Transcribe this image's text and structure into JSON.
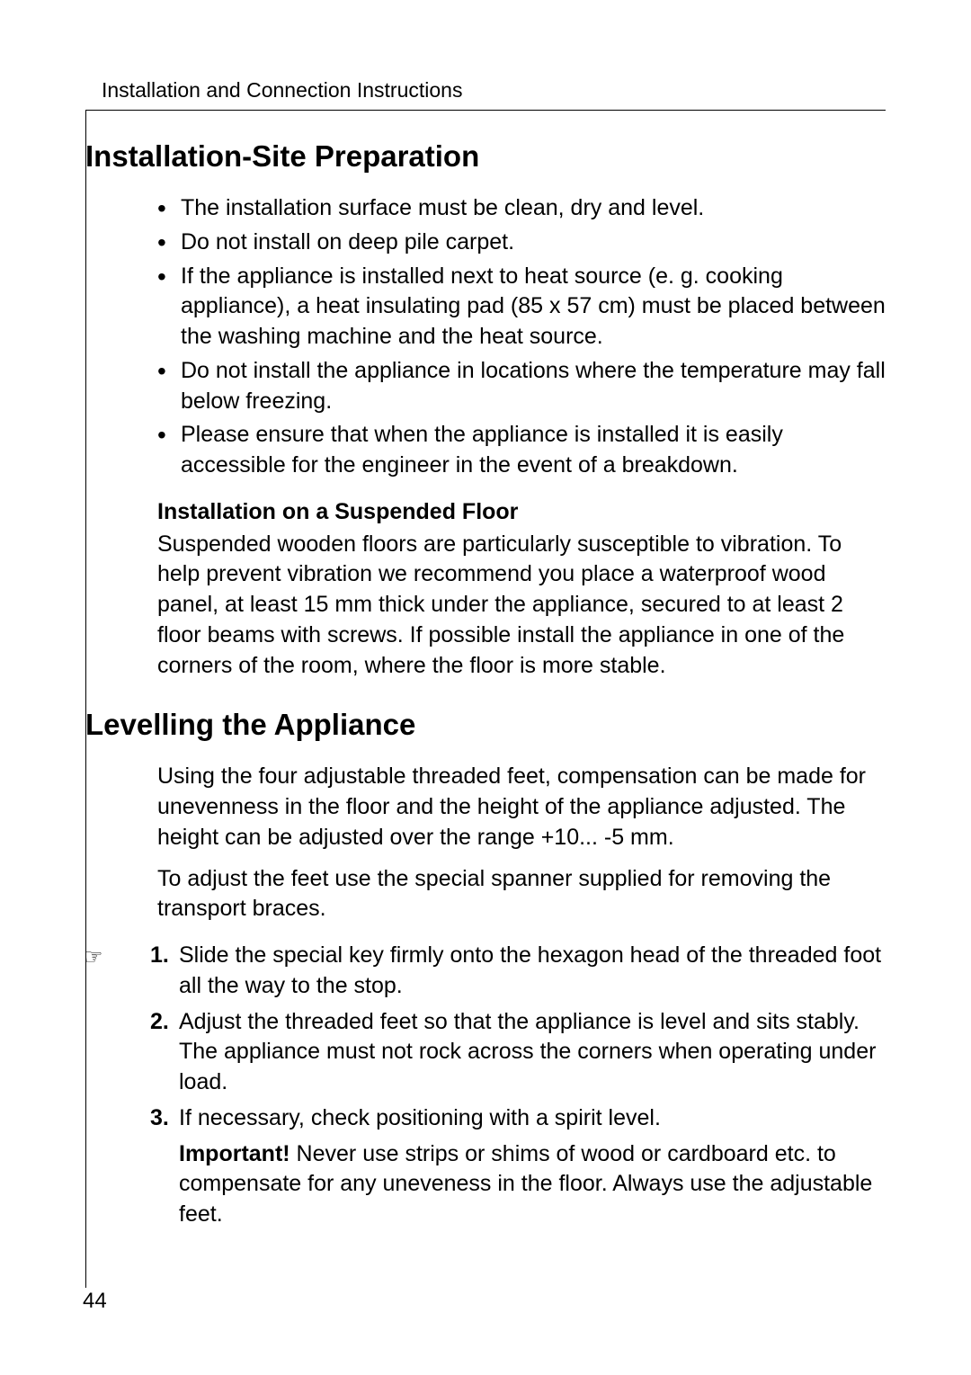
{
  "header": "Installation and Connection Instructions",
  "section1": {
    "title": "Installation-Site Preparation",
    "bullets": [
      "The installation surface must be clean, dry and level.",
      "Do not install on deep pile carpet.",
      "If the appliance is installed next to heat source (e. g. cooking appliance), a heat insulating pad (85 x 57 cm) must be placed between the washing machine and the heat source.",
      "Do not install the appliance in locations where the temperature may fall below freezing.",
      "Please ensure that when the appliance is installed it is easily accessible for the engineer in the event of a breakdown."
    ],
    "subheading": "Installation on a Suspended Floor",
    "subtext": "Suspended wooden floors are particularly susceptible to vibration. To help prevent vibration we recommend you place a waterproof wood panel, at least 15 mm thick under the appliance, secured to at least 2 floor beams with screws. If possible install the appliance in one of the corners of the room, where the floor is more stable."
  },
  "section2": {
    "title": "Levelling the Appliance",
    "intro1": "Using the four adjustable threaded feet, compensation can be made for unevenness in the floor and the height of the appliance adjusted. The height can be adjusted over the range +10... -5 mm.",
    "intro2": "To adjust the feet use the special spanner supplied for removing the transport braces.",
    "steps": {
      "num1": "1.",
      "text1": "Slide the special key firmly onto the hexagon head of the threaded foot all the way to the stop.",
      "num2": "2.",
      "text2": "Adjust the threaded feet so that the appliance is level and sits stably. The appliance must not rock across the corners when operating under load.",
      "num3": "3.",
      "text3": "If necessary, check positioning with a spirit level."
    },
    "important_label": "Important!",
    "important_text": " Never use strips or shims of wood or cardboard etc. to compensate for any uneveness in the floor. Always use the adjustable feet."
  },
  "page_number": "44",
  "hand_icon": "☞"
}
